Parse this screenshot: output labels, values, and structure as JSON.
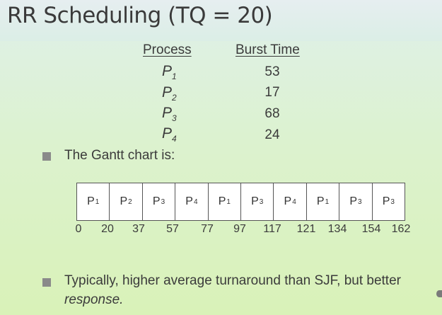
{
  "title": "RR Scheduling (TQ = 20)",
  "table": {
    "headers": [
      "Process",
      "Burst Time"
    ],
    "rows": [
      {
        "process": "P",
        "sub": "1",
        "burst": "53"
      },
      {
        "process": "P",
        "sub": "2",
        "burst": "17"
      },
      {
        "process": "P",
        "sub": "3",
        "burst": "68"
      },
      {
        "process": "P",
        "sub": "4",
        "burst": "24"
      }
    ]
  },
  "gantt_intro": "The Gantt chart is:",
  "gantt": {
    "cells": [
      {
        "p": "P",
        "sub": "1"
      },
      {
        "p": "P",
        "sub": "2"
      },
      {
        "p": "P",
        "sub": "3"
      },
      {
        "p": "P",
        "sub": "4"
      },
      {
        "p": "P",
        "sub": "1"
      },
      {
        "p": "P",
        "sub": "3"
      },
      {
        "p": "P",
        "sub": "4"
      },
      {
        "p": "P",
        "sub": "1"
      },
      {
        "p": "P",
        "sub": "3"
      },
      {
        "p": "P",
        "sub": "3"
      }
    ],
    "ticks": [
      "0",
      "20",
      "37",
      "57",
      "77",
      "97",
      "117",
      "121",
      "134",
      "154",
      "162"
    ]
  },
  "note_line1": "Typically, higher average turnaround than SJF, but better",
  "note_line2": "response.",
  "colors": {
    "bullet": "#8a8a8a",
    "gantt_border": "#555555"
  }
}
